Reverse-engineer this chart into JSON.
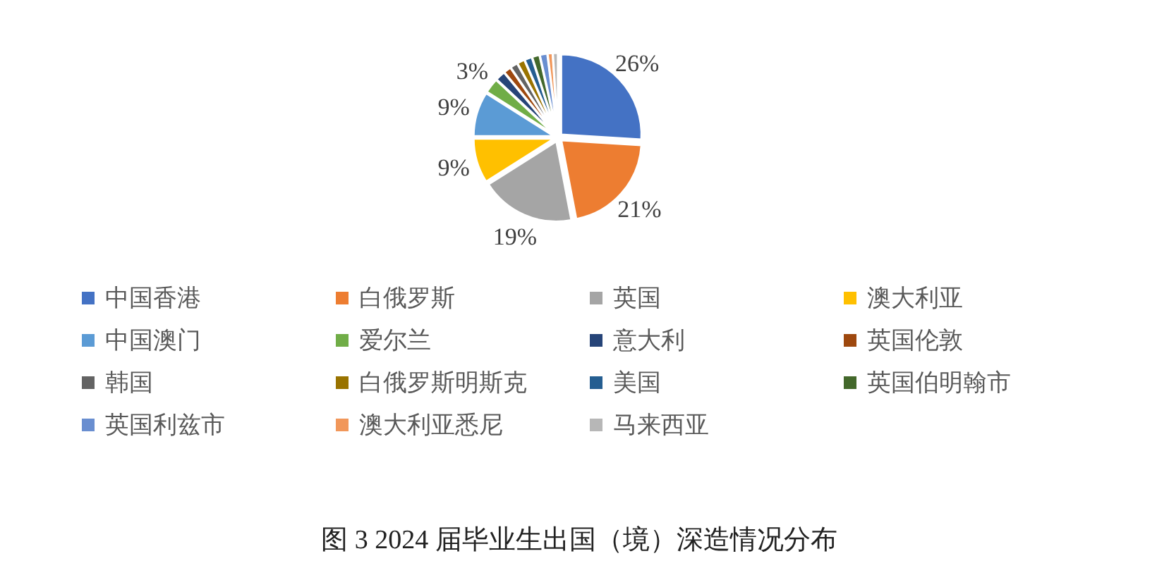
{
  "chart_data": {
    "type": "pie",
    "title": "图 3 2024 届毕业生出国（境）深造情况分布",
    "categories": [
      "中国香港",
      "白俄罗斯",
      "英国",
      "澳大利亚",
      "中国澳门",
      "爱尔兰",
      "意大利",
      "英国伦敦",
      "韩国",
      "白俄罗斯明斯克",
      "美国",
      "英国伯明翰市",
      "英国利兹市",
      "澳大利亚悉尼",
      "马来西亚"
    ],
    "values": [
      26,
      21,
      19,
      9,
      9,
      3,
      2,
      1.5,
      1.5,
      1.5,
      1.5,
      1.5,
      1.5,
      1,
      1
    ],
    "value_labels": [
      "26%",
      "21%",
      "19%",
      "9%",
      "9%",
      "3%",
      null,
      null,
      null,
      null,
      null,
      null,
      null,
      null,
      null
    ],
    "colors": [
      "#4472c4",
      "#ed7d31",
      "#a5a5a5",
      "#ffc000",
      "#5b9bd5",
      "#70ad47",
      "#264478",
      "#9e480e",
      "#636363",
      "#997300",
      "#255e91",
      "#43682b",
      "#698ed0",
      "#f1975a",
      "#b7b7b7"
    ],
    "legend": "bottom"
  }
}
